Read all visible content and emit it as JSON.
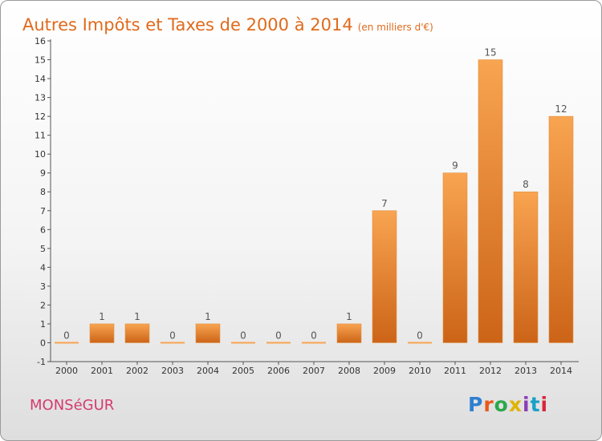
{
  "header": {
    "title": "Autres Impôts et Taxes de 2000 à 2014",
    "unit": "(en milliers d'€)"
  },
  "footer": {
    "commune": "MONSéGUR",
    "brand": "Proxiti"
  },
  "colors": {
    "title": "#e06a1c",
    "commune": "#d43c6e",
    "bar_light": "#f8a450",
    "bar_dark": "#cc6418"
  },
  "chart_data": {
    "type": "bar",
    "categories": [
      "2000",
      "2001",
      "2002",
      "2003",
      "2004",
      "2005",
      "2006",
      "2007",
      "2008",
      "2009",
      "2010",
      "2011",
      "2012",
      "2013",
      "2014"
    ],
    "values": [
      0,
      1,
      1,
      0,
      1,
      0,
      0,
      0,
      1,
      7,
      0,
      9,
      15,
      8,
      12
    ],
    "data_labels": [
      "0",
      "1",
      "1",
      "0",
      "1",
      "0",
      "0",
      "0",
      "1",
      "7",
      "0",
      "9",
      "15",
      "8",
      "12"
    ],
    "ylim": [
      -1,
      16
    ],
    "yticks": [
      -1,
      0,
      1,
      2,
      3,
      4,
      5,
      6,
      7,
      8,
      9,
      10,
      11,
      12,
      13,
      14,
      15,
      16
    ],
    "grid": false,
    "legend": "none"
  }
}
